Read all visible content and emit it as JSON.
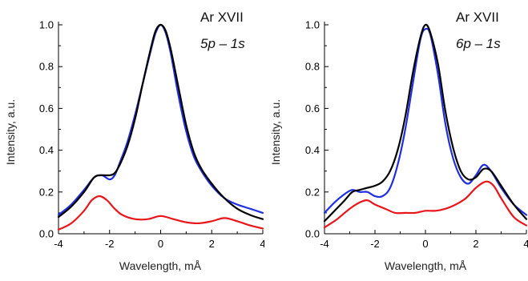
{
  "chart_data": [
    {
      "type": "line",
      "xlabel": "Wavelength, mÅ",
      "ylabel": "Intensity, a.u.",
      "xlim": [
        -4,
        4
      ],
      "ylim": [
        0,
        1.0
      ],
      "xticks": [
        -4,
        -2,
        0,
        2,
        4
      ],
      "yticks": [
        0.0,
        0.2,
        0.4,
        0.6,
        0.8,
        1.0
      ],
      "xtick_labels": [
        "-4",
        "-2",
        "0",
        "2",
        "4"
      ],
      "ytick_labels": [
        "0.0",
        "0.2",
        "0.4",
        "0.6",
        "0.8",
        "1.0"
      ],
      "annotations": [
        "Ar XVII",
        "5p – 1s"
      ],
      "grid": false,
      "series": [
        {
          "color": "#1f2ee0",
          "x": [
            -4,
            -3.5,
            -3,
            -2.6,
            -2.3,
            -2.0,
            -1.8,
            -1.6,
            -1.3,
            -1.0,
            -0.7,
            -0.4,
            -0.2,
            0,
            0.2,
            0.4,
            0.7,
            1.0,
            1.3,
            1.6,
            2.0,
            2.5,
            3.0,
            3.5,
            4
          ],
          "y": [
            0.09,
            0.14,
            0.21,
            0.27,
            0.28,
            0.26,
            0.28,
            0.34,
            0.44,
            0.57,
            0.72,
            0.87,
            0.96,
            1.0,
            0.96,
            0.86,
            0.66,
            0.49,
            0.37,
            0.3,
            0.23,
            0.17,
            0.14,
            0.12,
            0.1
          ]
        },
        {
          "color": "#000000",
          "x": [
            -4,
            -3.5,
            -3,
            -2.6,
            -2.3,
            -2.0,
            -1.8,
            -1.6,
            -1.3,
            -1.0,
            -0.7,
            -0.4,
            -0.2,
            0,
            0.2,
            0.4,
            0.7,
            1.0,
            1.3,
            1.6,
            2.0,
            2.5,
            3.0,
            3.5,
            4
          ],
          "y": [
            0.08,
            0.13,
            0.2,
            0.27,
            0.28,
            0.28,
            0.29,
            0.33,
            0.42,
            0.55,
            0.72,
            0.88,
            0.97,
            1.0,
            0.97,
            0.88,
            0.7,
            0.52,
            0.39,
            0.31,
            0.24,
            0.17,
            0.12,
            0.09,
            0.07
          ]
        },
        {
          "color": "#e8161b",
          "x": [
            -4,
            -3.5,
            -3,
            -2.7,
            -2.4,
            -2.1,
            -1.8,
            -1.5,
            -1.0,
            -0.5,
            0,
            0.5,
            1.0,
            1.5,
            2.0,
            2.5,
            3.0,
            3.5,
            4
          ],
          "y": [
            0.02,
            0.05,
            0.11,
            0.16,
            0.18,
            0.16,
            0.12,
            0.09,
            0.07,
            0.07,
            0.085,
            0.07,
            0.055,
            0.05,
            0.06,
            0.075,
            0.06,
            0.04,
            0.025
          ]
        }
      ]
    },
    {
      "type": "line",
      "xlabel": "Wavelength, mÅ",
      "ylabel": "Intensity, a.u.",
      "xlim": [
        -4,
        4
      ],
      "ylim": [
        0,
        1.0
      ],
      "xticks": [
        -4,
        -2,
        0,
        2,
        4
      ],
      "yticks": [
        0.0,
        0.2,
        0.4,
        0.6,
        0.8,
        1.0
      ],
      "xtick_labels": [
        "-4",
        "-2",
        "0",
        "2",
        "4"
      ],
      "ytick_labels": [
        "0.0",
        "0.2",
        "0.4",
        "0.6",
        "0.8",
        "1.0"
      ],
      "annotations": [
        "Ar XVII",
        "6p – 1s"
      ],
      "grid": false,
      "series": [
        {
          "color": "#1f2ee0",
          "x": [
            -4,
            -3.6,
            -3.2,
            -2.9,
            -2.6,
            -2.3,
            -2.0,
            -1.7,
            -1.4,
            -1.1,
            -0.8,
            -0.5,
            -0.2,
            0,
            0.2,
            0.5,
            0.8,
            1.1,
            1.4,
            1.7,
            2.0,
            2.3,
            2.6,
            3.0,
            3.5,
            4
          ],
          "y": [
            0.1,
            0.15,
            0.19,
            0.21,
            0.2,
            0.2,
            0.18,
            0.18,
            0.22,
            0.33,
            0.5,
            0.72,
            0.93,
            0.98,
            0.95,
            0.76,
            0.52,
            0.36,
            0.27,
            0.24,
            0.28,
            0.33,
            0.3,
            0.22,
            0.14,
            0.09
          ]
        },
        {
          "color": "#000000",
          "x": [
            -4,
            -3.6,
            -3.2,
            -2.9,
            -2.6,
            -2.3,
            -2.0,
            -1.7,
            -1.4,
            -1.1,
            -0.8,
            -0.5,
            -0.2,
            0,
            0.2,
            0.5,
            0.8,
            1.1,
            1.4,
            1.7,
            2.0,
            2.3,
            2.6,
            3.0,
            3.5,
            4
          ],
          "y": [
            0.06,
            0.11,
            0.16,
            0.2,
            0.21,
            0.22,
            0.23,
            0.25,
            0.3,
            0.4,
            0.56,
            0.77,
            0.94,
            1.0,
            0.96,
            0.81,
            0.58,
            0.41,
            0.3,
            0.26,
            0.27,
            0.31,
            0.3,
            0.23,
            0.14,
            0.07
          ]
        },
        {
          "color": "#e8161b",
          "x": [
            -4,
            -3.5,
            -3,
            -2.6,
            -2.3,
            -2.0,
            -1.6,
            -1.2,
            -0.8,
            -0.4,
            0,
            0.4,
            0.8,
            1.2,
            1.6,
            2.0,
            2.4,
            2.7,
            3.0,
            3.5,
            4
          ],
          "y": [
            0.03,
            0.07,
            0.12,
            0.15,
            0.16,
            0.14,
            0.12,
            0.1,
            0.1,
            0.1,
            0.11,
            0.11,
            0.12,
            0.14,
            0.17,
            0.22,
            0.25,
            0.23,
            0.17,
            0.08,
            0.04
          ]
        }
      ]
    }
  ]
}
